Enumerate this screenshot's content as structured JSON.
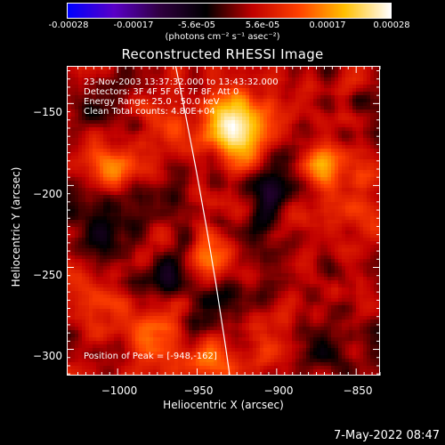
{
  "colorbar": {
    "ticks": [
      "-0.00028",
      "-0.00017",
      "-5.6e-05",
      "5.6e-05",
      "0.00017",
      "0.00028"
    ],
    "unit_label": "(photons cm⁻² s⁻¹ asec⁻²)",
    "colors": [
      "#0000ff",
      "#5a00c8",
      "#300040",
      "#000000",
      "#c00000",
      "#ff4000",
      "#ffc000",
      "#ffffff"
    ]
  },
  "chart_data": {
    "type": "heatmap",
    "title": "Reconstructed RHESSI Image",
    "xlabel": "Heliocentric X (arcsec)",
    "ylabel": "Heliocentric Y (arcsec)",
    "xlim": [
      -1032,
      -835
    ],
    "ylim": [
      -316,
      -127
    ],
    "xticks": [
      -1000,
      -950,
      -900,
      -850
    ],
    "yticks": [
      -150,
      -200,
      -250,
      -300
    ],
    "xtick_labels": [
      "−1000",
      "−950",
      "−900",
      "−850"
    ],
    "ytick_labels": [
      "−150",
      "−200",
      "−250",
      "−300"
    ],
    "value_range": [
      -0.00028,
      0.00028
    ],
    "annotations": [
      "23-Nov-2003 13:37:32.000 to 13:43:32.000",
      "Detectors: 3F 4F 5F 6F 7F 8F, Att 0",
      "Energy Range: 25.0 - 50.0 keV",
      "Clean     Total counts: 4.80E+04"
    ],
    "peak_label": "Position of Peak = [-948,-162]",
    "limb_line": [
      [
        -964,
        -127
      ],
      [
        -930,
        -316
      ]
    ]
  },
  "footer": {
    "date": "7-May-2022 08:47"
  }
}
